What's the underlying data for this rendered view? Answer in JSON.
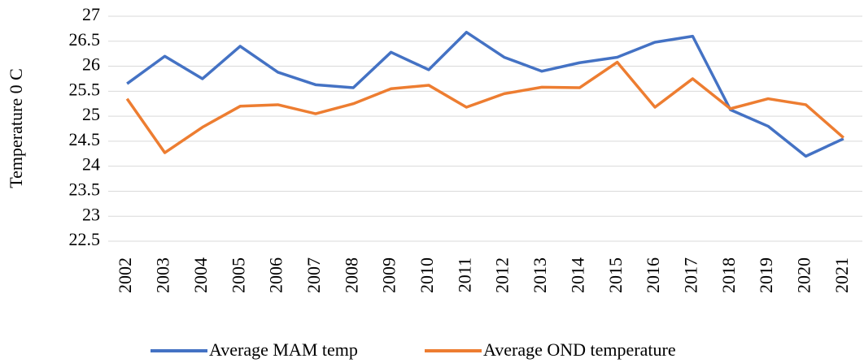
{
  "chart_data": {
    "type": "line",
    "y_label": "Temperature  0 C",
    "categories": [
      "2002",
      "2003",
      "2004",
      "2005",
      "2006",
      "2007",
      "2008",
      "2009",
      "2010",
      "2011",
      "2012",
      "2013",
      "2014",
      "2015",
      "2016",
      "2017",
      "2018",
      "2019",
      "2020",
      "2021"
    ],
    "series": [
      {
        "name": "Average MAM temp",
        "color": "#4472c4",
        "values": [
          25.65,
          26.2,
          25.75,
          26.4,
          25.88,
          25.63,
          25.57,
          26.28,
          25.93,
          26.68,
          26.18,
          25.9,
          26.07,
          26.18,
          26.48,
          26.6,
          25.13,
          24.8,
          24.2,
          24.55
        ]
      },
      {
        "name": "Average OND temperature",
        "color": "#ed7d31",
        "values": [
          25.35,
          24.27,
          24.78,
          25.2,
          25.23,
          25.05,
          25.25,
          25.55,
          25.62,
          25.18,
          25.45,
          25.58,
          25.57,
          26.08,
          25.18,
          25.75,
          25.15,
          25.35,
          25.23,
          24.57
        ]
      }
    ],
    "ylim": [
      22.5,
      27
    ],
    "yticks": [
      22.5,
      23,
      23.5,
      24,
      24.5,
      25,
      25.5,
      26,
      26.5,
      27
    ],
    "grid": true,
    "legend": "bottom"
  }
}
